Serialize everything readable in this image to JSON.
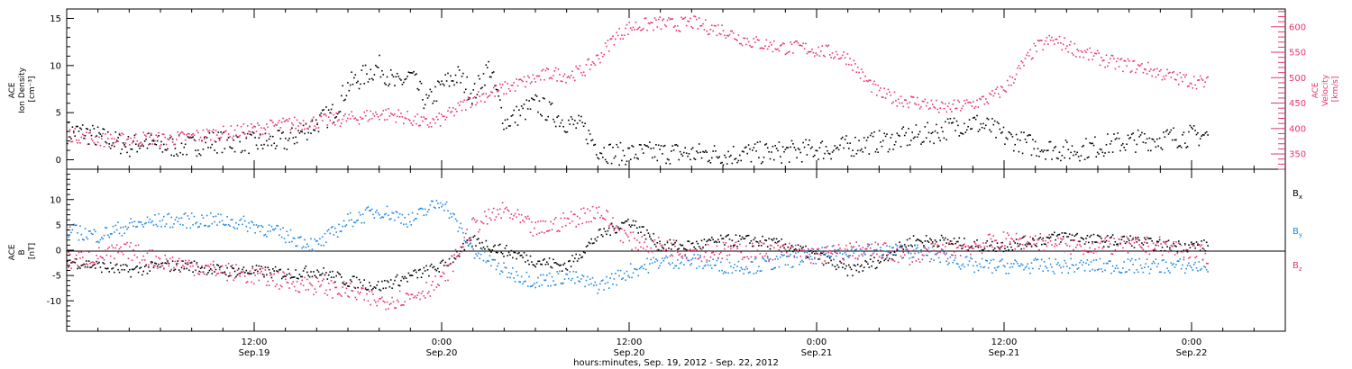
{
  "colors": {
    "black": "#000000",
    "pink": "#e8356b",
    "blue": "#1e88e5"
  },
  "time_axis": {
    "start_hour": 0,
    "end_hour": 78,
    "ticks": [
      {
        "hour": 12,
        "line1": "12:00",
        "line2": "Sep.19"
      },
      {
        "hour": 24,
        "line1": "0:00",
        "line2": "Sep.20"
      },
      {
        "hour": 36,
        "line1": "12:00",
        "line2": "Sep.20"
      },
      {
        "hour": 48,
        "line1": "0:00",
        "line2": "Sep.21"
      },
      {
        "hour": 60,
        "line1": "12:00",
        "line2": "Sep.21"
      },
      {
        "hour": 72,
        "line1": "0:00",
        "line2": "Sep.22"
      }
    ],
    "caption": "hours:minutes, Sep. 19, 2012 - Sep. 22, 2012"
  },
  "chart_data": [
    {
      "type": "scatter",
      "panel": "plasma",
      "ylabel_left": [
        "ACE",
        "Ion Density",
        "[cm⁻³]"
      ],
      "ylabel_right": [
        "ACE",
        "Velocity",
        "[km/s]"
      ],
      "left_axis": {
        "ylim": [
          -1,
          16
        ],
        "ticks": [
          0,
          5,
          10,
          15
        ]
      },
      "right_axis": {
        "ylim": [
          320,
          635
        ],
        "ticks": [
          350,
          400,
          450,
          500,
          550,
          600
        ]
      },
      "series": [
        {
          "axis": "left",
          "color": "black",
          "x": [
            0,
            1,
            2,
            3,
            4,
            5,
            6,
            7,
            8,
            9,
            10,
            11,
            12,
            13,
            14,
            15,
            16,
            17,
            18,
            19,
            20,
            21,
            22,
            23,
            24,
            25,
            26,
            27,
            28,
            29,
            30,
            31,
            32,
            33,
            34,
            35,
            36,
            37,
            38,
            39,
            40,
            41,
            42,
            43,
            44,
            45,
            46,
            47,
            48,
            49,
            50,
            51,
            52,
            53,
            54,
            55,
            56,
            57,
            58,
            59,
            60,
            61,
            62,
            63,
            64,
            65,
            66,
            67,
            68,
            69,
            70,
            71,
            72,
            73
          ],
          "y": [
            3,
            3,
            2.5,
            2,
            1.5,
            2,
            1.5,
            1.5,
            1.5,
            2,
            2,
            2,
            1.8,
            2,
            2,
            3,
            4,
            5,
            8,
            9,
            10,
            8,
            9,
            6,
            8,
            9,
            7,
            10,
            4,
            5,
            6,
            5,
            4,
            3.5,
            1.2,
            0.7,
            0.7,
            0.8,
            0.8,
            0.8,
            0.7,
            0.7,
            0.6,
            0.7,
            0.8,
            0.8,
            0.9,
            1,
            1.2,
            1.2,
            1.5,
            1.8,
            2,
            2.2,
            2.5,
            2.8,
            3.2,
            3.8,
            4,
            3.5,
            2.5,
            2,
            1.5,
            1.2,
            1,
            1.2,
            1.5,
            1.8,
            2,
            2.2,
            2.3,
            2.5,
            2.6,
            2.7
          ],
          "spread": 1.2
        },
        {
          "axis": "right",
          "color": "pink",
          "x": [
            0,
            1,
            2,
            3,
            4,
            5,
            6,
            7,
            8,
            9,
            10,
            11,
            12,
            13,
            14,
            15,
            16,
            17,
            18,
            19,
            20,
            21,
            22,
            23,
            24,
            25,
            26,
            27,
            28,
            29,
            30,
            31,
            32,
            33,
            34,
            35,
            36,
            37,
            38,
            39,
            40,
            41,
            42,
            43,
            44,
            45,
            46,
            47,
            48,
            49,
            50,
            51,
            52,
            53,
            54,
            55,
            56,
            57,
            58,
            59,
            60,
            61,
            62,
            63,
            64,
            65,
            66,
            67,
            68,
            69,
            70,
            71,
            72,
            73
          ],
          "y": [
            390,
            385,
            380,
            378,
            380,
            382,
            380,
            382,
            385,
            390,
            392,
            395,
            400,
            405,
            410,
            412,
            415,
            418,
            420,
            425,
            430,
            428,
            420,
            410,
            420,
            440,
            460,
            470,
            480,
            490,
            500,
            510,
            505,
            515,
            540,
            580,
            600,
            605,
            608,
            605,
            610,
            600,
            595,
            580,
            570,
            565,
            560,
            560,
            555,
            550,
            540,
            500,
            470,
            460,
            455,
            450,
            440,
            445,
            450,
            460,
            480,
            520,
            560,
            575,
            565,
            550,
            540,
            530,
            525,
            520,
            510,
            500,
            495,
            490
          ],
          "spread": 14
        }
      ]
    },
    {
      "type": "scatter",
      "panel": "magnetic_field",
      "ylabel_left": [
        "ACE",
        "B",
        "[nT]"
      ],
      "left_axis": {
        "ylim": [
          -16,
          16
        ],
        "ticks": [
          -10,
          -5,
          0,
          5,
          10
        ]
      },
      "legend": [
        {
          "label": "B",
          "sub": "x",
          "color": "black"
        },
        {
          "label": "B",
          "sub": "y",
          "color": "blue"
        },
        {
          "label": "B",
          "sub": "z",
          "color": "pink"
        }
      ],
      "series": [
        {
          "name": "Bx",
          "color": "black",
          "x": [
            0,
            2,
            4,
            6,
            8,
            10,
            12,
            14,
            16,
            18,
            20,
            22,
            24,
            26,
            28,
            30,
            32,
            34,
            36,
            38,
            40,
            42,
            44,
            46,
            48,
            50,
            52,
            54,
            56,
            58,
            60,
            62,
            64,
            66,
            68,
            70,
            72,
            73
          ],
          "y": [
            -2,
            -3,
            -4,
            -3,
            -3,
            -4,
            -4,
            -4.5,
            -4,
            -6,
            -7,
            -5,
            -3,
            2,
            0,
            -2,
            -3,
            3,
            6,
            1,
            1,
            2,
            2,
            1,
            -1,
            -4,
            -2,
            2,
            2,
            1,
            1,
            2,
            3,
            2,
            2,
            1,
            1,
            1
          ],
          "spread": 1.2
        },
        {
          "name": "By",
          "color": "blue",
          "x": [
            0,
            2,
            4,
            6,
            8,
            10,
            12,
            14,
            16,
            18,
            20,
            22,
            24,
            26,
            28,
            30,
            32,
            34,
            36,
            38,
            40,
            42,
            44,
            46,
            48,
            50,
            52,
            54,
            56,
            58,
            60,
            62,
            64,
            66,
            68,
            70,
            72,
            73
          ],
          "y": [
            4,
            3,
            5,
            6,
            6,
            6,
            5,
            3,
            1,
            6,
            8,
            6,
            10,
            0,
            -4,
            -6,
            -5,
            -7,
            -4,
            -2,
            -2,
            -3,
            -3,
            -2,
            -1,
            0,
            0,
            0,
            -1,
            -3,
            -3,
            -3,
            -3,
            -3,
            -3,
            -3,
            -3,
            -3
          ],
          "spread": 1.5
        },
        {
          "name": "Bz",
          "color": "pink",
          "x": [
            0,
            2,
            4,
            6,
            8,
            10,
            12,
            14,
            16,
            18,
            20,
            22,
            24,
            26,
            28,
            30,
            32,
            34,
            36,
            38,
            40,
            42,
            44,
            46,
            48,
            50,
            52,
            54,
            56,
            58,
            60,
            62,
            64,
            66,
            68,
            70,
            72,
            73
          ],
          "y": [
            -2,
            -1,
            0,
            -2,
            -3,
            -4,
            -5,
            -6,
            -7,
            -8,
            -10,
            -9,
            -6,
            5,
            8,
            4,
            6,
            8,
            2,
            1,
            0,
            0,
            0,
            0,
            -1,
            0,
            0,
            -1,
            0,
            1,
            2,
            2,
            1,
            1,
            1,
            1,
            0,
            -1
          ],
          "spread": 1.8
        }
      ]
    }
  ]
}
